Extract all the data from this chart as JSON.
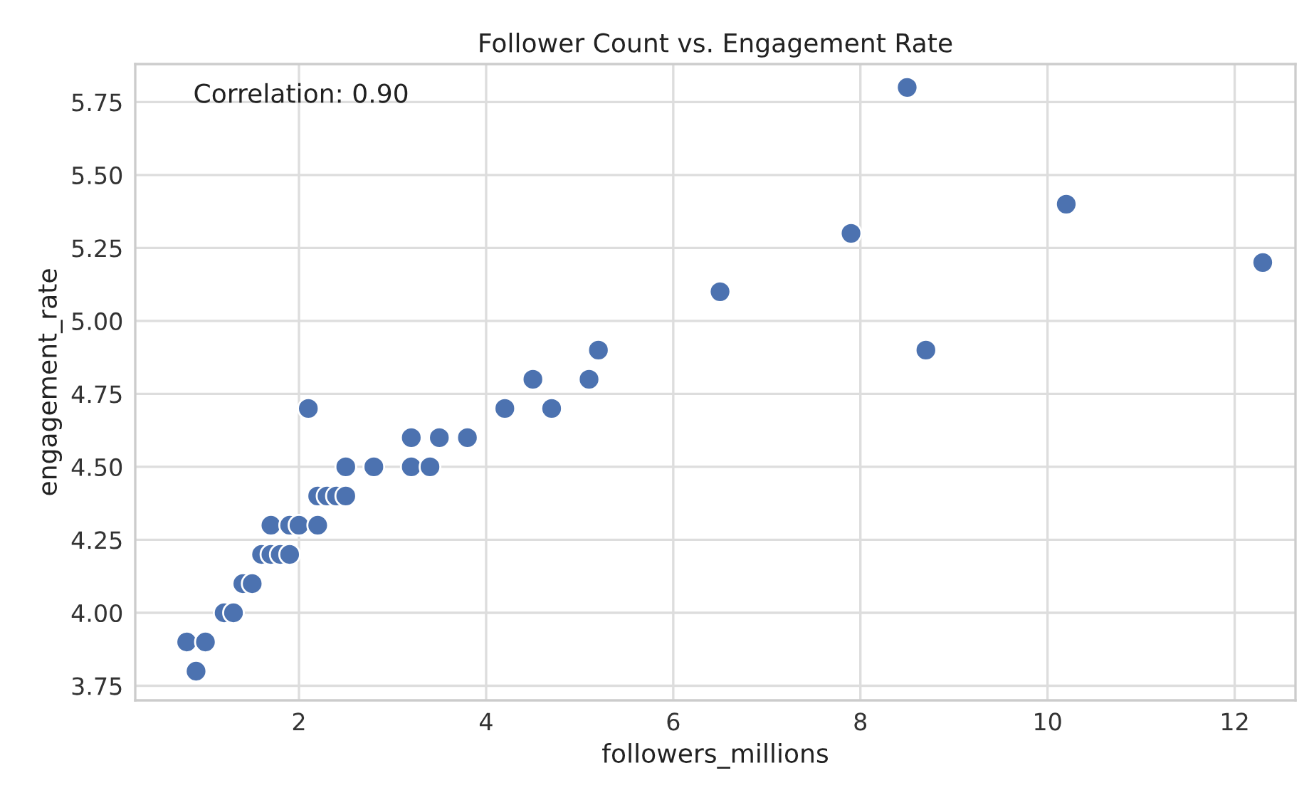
{
  "chart_data": {
    "type": "scatter",
    "title": "Follower Count vs. Engagement Rate",
    "xlabel": "followers_millions",
    "ylabel": "engagement_rate",
    "annotations": [
      "Correlation: 0.90"
    ],
    "series": [
      {
        "color": "#4c72b0",
        "x": [
          0.8,
          1.0,
          0.9,
          1.2,
          1.3,
          1.4,
          1.5,
          1.6,
          1.7,
          1.8,
          1.9,
          1.7,
          1.9,
          2.0,
          2.2,
          2.2,
          2.3,
          2.4,
          2.5,
          2.5,
          2.8,
          3.2,
          3.4,
          3.2,
          3.5,
          3.8,
          2.1,
          4.2,
          4.7,
          4.5,
          5.1,
          5.2,
          8.7,
          6.5,
          7.9,
          8.5,
          10.2,
          12.3
        ],
        "values": [
          3.9,
          3.9,
          3.8,
          4.0,
          4.0,
          4.1,
          4.1,
          4.2,
          4.2,
          4.2,
          4.2,
          4.3,
          4.3,
          4.3,
          4.3,
          4.4,
          4.4,
          4.4,
          4.4,
          4.5,
          4.5,
          4.5,
          4.5,
          4.6,
          4.6,
          4.6,
          4.7,
          4.7,
          4.7,
          4.8,
          4.8,
          4.9,
          4.9,
          5.1,
          5.3,
          5.8,
          5.4,
          5.2
        ]
      }
    ],
    "xlim": [
      0.25,
      12.65
    ],
    "ylim": [
      3.7,
      5.88
    ],
    "xticks": [
      2,
      4,
      6,
      8,
      10,
      12
    ],
    "yticks": [
      {
        "value": 3.75,
        "label": "3.75"
      },
      {
        "value": 4.0,
        "label": "4.00"
      },
      {
        "value": 4.25,
        "label": "4.25"
      },
      {
        "value": 4.5,
        "label": "4.50"
      },
      {
        "value": 4.75,
        "label": "4.75"
      },
      {
        "value": 5.0,
        "label": "5.00"
      },
      {
        "value": 5.25,
        "label": "5.25"
      },
      {
        "value": 5.5,
        "label": "5.50"
      },
      {
        "value": 5.75,
        "label": "5.75"
      }
    ],
    "grid": true,
    "marker": "circle"
  }
}
